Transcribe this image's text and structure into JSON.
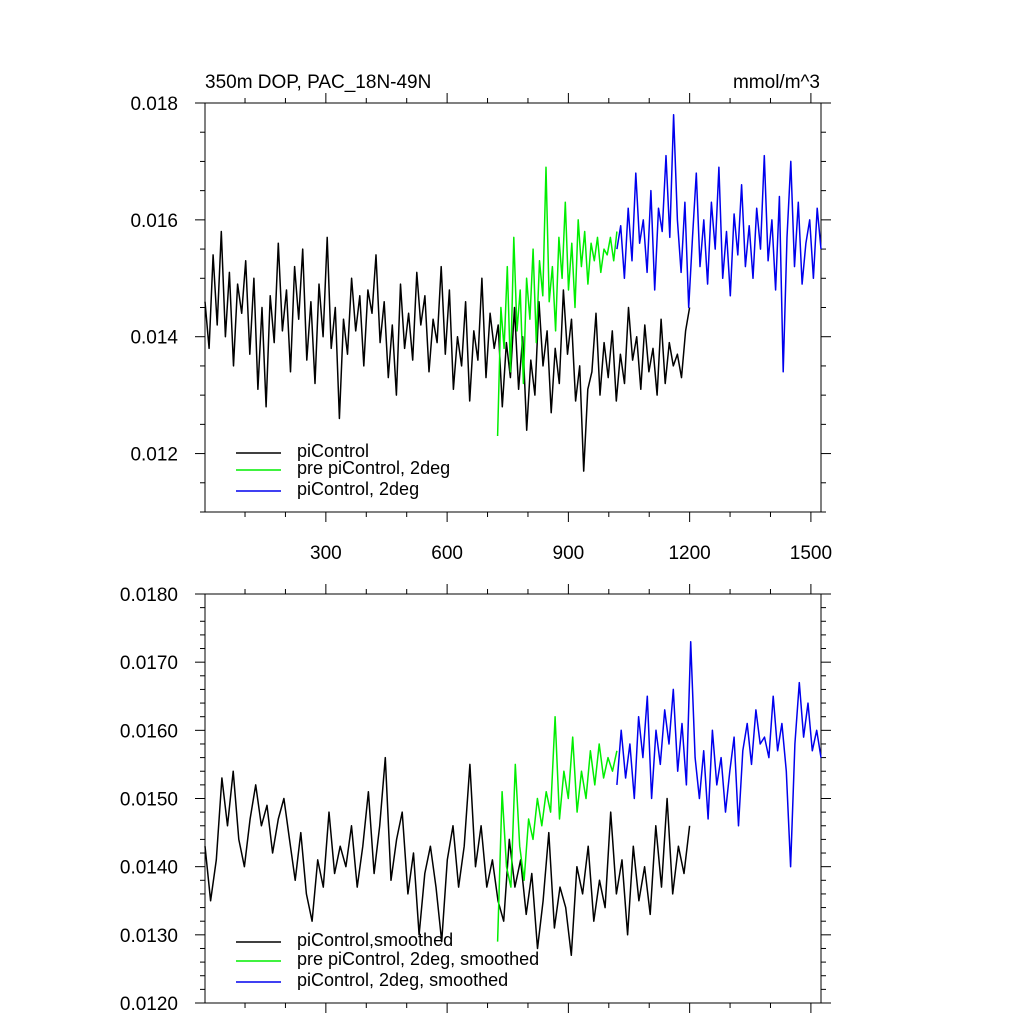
{
  "chart_data": [
    {
      "type": "line",
      "title": "350m DOP, PAC_18N-49N",
      "units": "mmol/m^3",
      "xlim": [
        1,
        1525
      ],
      "ylim": [
        0.011,
        0.018
      ],
      "xticks": [
        300,
        600,
        900,
        1200,
        1500
      ],
      "xtick_labels": [
        "300",
        "600",
        "900",
        "1200",
        "1500"
      ],
      "yticks": [
        0.012,
        0.014,
        0.016,
        0.018
      ],
      "ytick_labels": [
        "0.012",
        "0.014",
        "0.016",
        "0.018"
      ],
      "legend_position": "bottom-left",
      "series": [
        {
          "name": "piControl",
          "color": "#000000",
          "x_start": 1,
          "x_end": 1200,
          "values": [
            0.0146,
            0.0138,
            0.0154,
            0.0142,
            0.0158,
            0.014,
            0.0151,
            0.0135,
            0.0149,
            0.0144,
            0.0153,
            0.0137,
            0.015,
            0.0131,
            0.0145,
            0.0128,
            0.0147,
            0.0139,
            0.0156,
            0.0141,
            0.0148,
            0.0134,
            0.0152,
            0.0143,
            0.0155,
            0.0136,
            0.0146,
            0.0132,
            0.0149,
            0.014,
            0.0157,
            0.0138,
            0.0145,
            0.0126,
            0.0143,
            0.0137,
            0.015,
            0.0141,
            0.0147,
            0.0135,
            0.0148,
            0.0144,
            0.0154,
            0.0139,
            0.0146,
            0.0133,
            0.0142,
            0.013,
            0.0149,
            0.0138,
            0.0144,
            0.0136,
            0.0151,
            0.0142,
            0.0147,
            0.0134,
            0.0143,
            0.0139,
            0.0152,
            0.0137,
            0.0148,
            0.0131,
            0.014,
            0.0135,
            0.0146,
            0.0129,
            0.0141,
            0.0136,
            0.015,
            0.0133,
            0.0144,
            0.0138,
            0.0142,
            0.0128,
            0.0139,
            0.0133,
            0.0145,
            0.0131,
            0.014,
            0.0124,
            0.0136,
            0.013,
            0.0146,
            0.0135,
            0.0141,
            0.0127,
            0.0138,
            0.0132,
            0.0148,
            0.0137,
            0.0143,
            0.0129,
            0.0135,
            0.0117,
            0.0131,
            0.0134,
            0.0144,
            0.013,
            0.0139,
            0.0133,
            0.0141,
            0.0129,
            0.0137,
            0.0132,
            0.0145,
            0.0136,
            0.014,
            0.0131,
            0.0142,
            0.0134,
            0.0138,
            0.013,
            0.0143,
            0.0132,
            0.0139,
            0.0135,
            0.0137,
            0.0133,
            0.0141,
            0.0145
          ]
        },
        {
          "name": "pre piControl, 2deg",
          "color": "#00ee00",
          "x_start": 725,
          "x_end": 1020,
          "values": [
            0.0123,
            0.0145,
            0.0138,
            0.0152,
            0.0134,
            0.0157,
            0.0141,
            0.0148,
            0.0132,
            0.015,
            0.0143,
            0.0155,
            0.0139,
            0.0153,
            0.0147,
            0.0169,
            0.0146,
            0.0152,
            0.0141,
            0.0157,
            0.015,
            0.0163,
            0.0148,
            0.0156,
            0.0145,
            0.016,
            0.0152,
            0.0158,
            0.0149,
            0.0156,
            0.0153,
            0.0157,
            0.0151,
            0.0155,
            0.0154,
            0.0157,
            0.0153,
            0.0158
          ]
        },
        {
          "name": "piControl, 2deg",
          "color": "#0000ee",
          "x_start": 1020,
          "x_end": 1525,
          "values": [
            0.0155,
            0.0159,
            0.015,
            0.0162,
            0.0153,
            0.0168,
            0.0156,
            0.016,
            0.0151,
            0.0165,
            0.0148,
            0.0162,
            0.0158,
            0.0171,
            0.0157,
            0.0178,
            0.016,
            0.0151,
            0.0163,
            0.0145,
            0.0157,
            0.0168,
            0.0152,
            0.016,
            0.0149,
            0.0163,
            0.0155,
            0.0169,
            0.015,
            0.0158,
            0.0147,
            0.0161,
            0.0154,
            0.0166,
            0.0152,
            0.0159,
            0.015,
            0.0162,
            0.0155,
            0.0171,
            0.0153,
            0.016,
            0.0148,
            0.0164,
            0.0134,
            0.0157,
            0.017,
            0.0152,
            0.0163,
            0.0149,
            0.0156,
            0.016,
            0.015,
            0.0162,
            0.0155
          ]
        }
      ]
    },
    {
      "type": "line",
      "title": "",
      "xlim": [
        1,
        1525
      ],
      "ylim": [
        0.012,
        0.018
      ],
      "xticks": [
        300,
        600,
        900,
        1200,
        1500
      ],
      "yticks": [
        0.012,
        0.013,
        0.014,
        0.015,
        0.016,
        0.017,
        0.018
      ],
      "ytick_labels": [
        "0.0120",
        "0.0130",
        "0.0140",
        "0.0150",
        "0.0160",
        "0.0170",
        "0.0180"
      ],
      "legend_position": "bottom-left",
      "series": [
        {
          "name": "piControl,smoothed",
          "color": "#000000",
          "x_start": 1,
          "x_end": 1200,
          "values": [
            0.0143,
            0.0135,
            0.0141,
            0.0153,
            0.0146,
            0.0154,
            0.0144,
            0.014,
            0.0147,
            0.0152,
            0.0146,
            0.0149,
            0.0142,
            0.0147,
            0.015,
            0.0144,
            0.0138,
            0.0145,
            0.0136,
            0.0132,
            0.0141,
            0.0137,
            0.0148,
            0.0139,
            0.0143,
            0.014,
            0.0146,
            0.0137,
            0.0143,
            0.0151,
            0.0139,
            0.0146,
            0.0156,
            0.0138,
            0.0144,
            0.0148,
            0.0136,
            0.0142,
            0.013,
            0.0139,
            0.0143,
            0.0137,
            0.0129,
            0.0141,
            0.0146,
            0.0137,
            0.0143,
            0.0155,
            0.014,
            0.0146,
            0.0137,
            0.0141,
            0.0135,
            0.0132,
            0.0144,
            0.0137,
            0.0141,
            0.0133,
            0.0139,
            0.0128,
            0.0135,
            0.0145,
            0.0131,
            0.0137,
            0.0134,
            0.0127,
            0.014,
            0.0136,
            0.0143,
            0.0132,
            0.0138,
            0.0134,
            0.0148,
            0.0136,
            0.0141,
            0.013,
            0.0143,
            0.0135,
            0.014,
            0.0133,
            0.0146,
            0.0137,
            0.015,
            0.0136,
            0.0143,
            0.0139,
            0.0146
          ]
        },
        {
          "name": "pre piControl, 2deg, smoothed",
          "color": "#00ee00",
          "x_start": 725,
          "x_end": 1020,
          "values": [
            0.0129,
            0.0151,
            0.014,
            0.0137,
            0.0155,
            0.0143,
            0.0138,
            0.0147,
            0.0144,
            0.015,
            0.0146,
            0.0151,
            0.0148,
            0.0162,
            0.0147,
            0.0154,
            0.015,
            0.0159,
            0.0148,
            0.0154,
            0.015,
            0.0157,
            0.0152,
            0.0158,
            0.0153,
            0.0156,
            0.0154,
            0.0157
          ]
        },
        {
          "name": "piControl, 2deg, smoothed",
          "color": "#0000ee",
          "x_start": 1020,
          "x_end": 1525,
          "values": [
            0.0152,
            0.016,
            0.0153,
            0.0158,
            0.015,
            0.0162,
            0.0156,
            0.0165,
            0.015,
            0.016,
            0.0155,
            0.0163,
            0.0158,
            0.0166,
            0.0154,
            0.0161,
            0.0152,
            0.0173,
            0.0156,
            0.015,
            0.0157,
            0.0147,
            0.016,
            0.0152,
            0.0156,
            0.0148,
            0.0154,
            0.0159,
            0.0146,
            0.0157,
            0.0161,
            0.0155,
            0.0163,
            0.0158,
            0.0159,
            0.0156,
            0.0165,
            0.0157,
            0.0161,
            0.0154,
            0.014,
            0.0158,
            0.0167,
            0.0159,
            0.0164,
            0.0157,
            0.016,
            0.0156
          ]
        }
      ]
    }
  ]
}
